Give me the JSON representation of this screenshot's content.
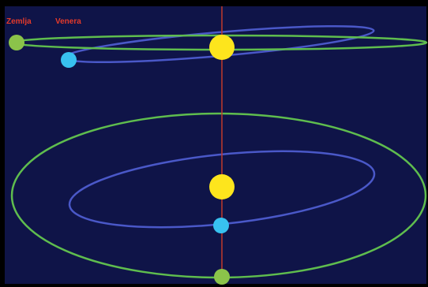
{
  "labels": {
    "earth": "Zemlja",
    "venus": "Venera"
  },
  "colors": {
    "frame": "#000000",
    "background": "#0f1448",
    "earth_orbit": "#5fbd4e",
    "venus_orbit": "#4a58c8",
    "axis": "#c0392b",
    "sun": "#fde51d",
    "earth": "#8bc34a",
    "venus": "#38c2f0",
    "label": "#e53a2a"
  }
}
